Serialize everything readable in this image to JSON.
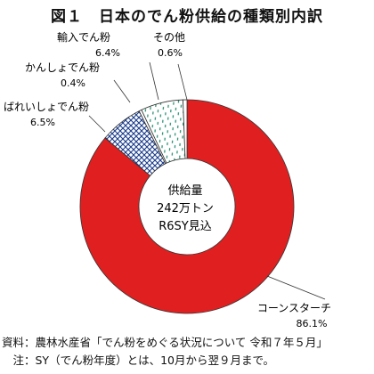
{
  "title": "図１　日本のでん粉供給の種類別内訳",
  "center_label": [
    "供給量",
    "242万トン",
    "R6SY見込"
  ],
  "notes": [
    "資料：農林水産省「でん粉をめぐる状況について 令和７年５月」",
    "　注：SY（でん粉年度）とは、10月から翌９月まで。"
  ],
  "chart_data": {
    "type": "pie",
    "variant": "donut",
    "title": "図１　日本のでん粉供給の種類別内訳",
    "unit": "%",
    "slices": [
      {
        "name": "コーンスターチ",
        "value": 86.1,
        "label": "86.1%",
        "color": "#e02020",
        "pattern": "solid"
      },
      {
        "name": "ばれいしょでん粉",
        "value": 6.5,
        "label": "6.5%",
        "color": "#1a3c8c",
        "pattern": "crosshatch"
      },
      {
        "name": "かんしょでん粉",
        "value": 0.4,
        "label": "0.4%",
        "color": "#ffffff",
        "pattern": "solid"
      },
      {
        "name": "輸入でん粉",
        "value": 6.4,
        "label": "6.4%",
        "color": "#1a8a6a",
        "pattern": "dots"
      },
      {
        "name": "その他",
        "value": 0.6,
        "label": "0.6%",
        "color": "#ffffff",
        "pattern": "solid"
      }
    ]
  }
}
